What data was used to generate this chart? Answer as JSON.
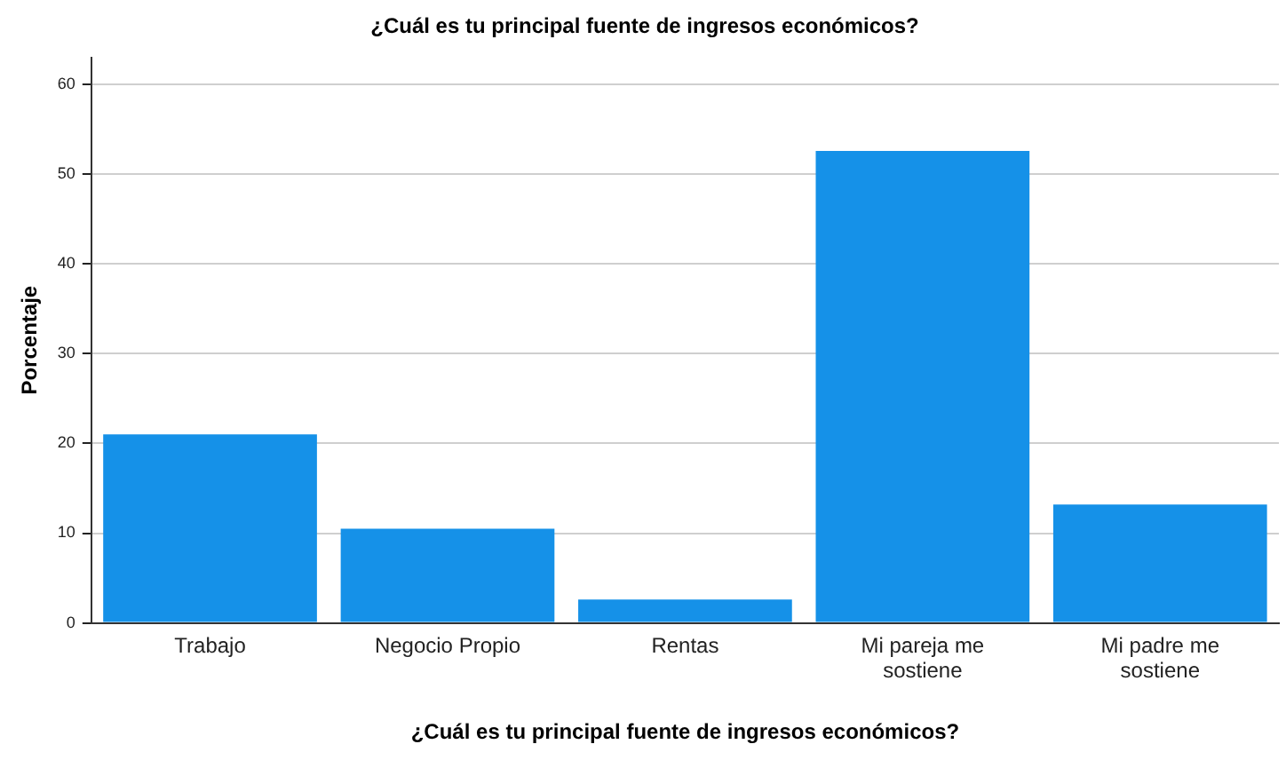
{
  "chart_data": {
    "type": "bar",
    "title": "¿Cuál es tu principal fuente de ingresos económicos?",
    "xlabel": "¿Cuál es tu principal fuente de ingresos económicos?",
    "ylabel": "Porcentaje",
    "categories": [
      "Trabajo",
      "Negocio Propio",
      "Rentas",
      "Mi pareja me sostiene",
      "Mi padre me sostiene"
    ],
    "values": [
      21.0,
      10.5,
      2.6,
      52.6,
      13.2
    ],
    "color": "#1591e8",
    "ylim": [
      0,
      63
    ],
    "yticks": [
      0,
      10,
      20,
      30,
      40,
      50,
      60
    ],
    "grid": "y",
    "legend": false
  }
}
